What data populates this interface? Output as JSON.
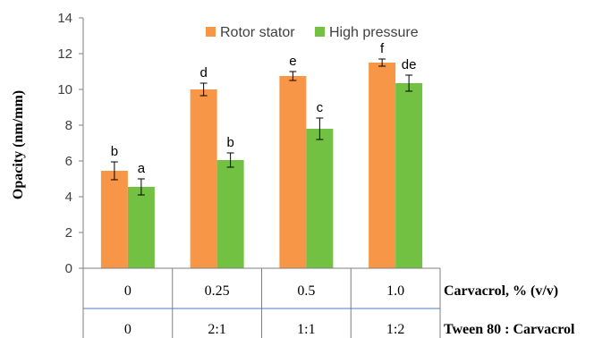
{
  "chart_data": {
    "type": "bar",
    "ylabel": "Opacity (nm/mm)",
    "ylim": [
      0,
      14
    ],
    "yticks": [
      0,
      2,
      4,
      6,
      8,
      10,
      12,
      14
    ],
    "categories": [
      "0",
      "0.25",
      "0.5",
      "1.0"
    ],
    "secondary_categories": [
      "0",
      "2:1",
      "1:1",
      "1:2"
    ],
    "row_labels": [
      "Carvacrol, % (v/v)",
      "Tween 80 : Carvacrol"
    ],
    "legend_position": "top-right",
    "grid": false,
    "series": [
      {
        "name": "Rotor stator",
        "color": "#F79646",
        "values": [
          5.45,
          10.0,
          10.75,
          11.5
        ],
        "errors": [
          0.5,
          0.35,
          0.25,
          0.2
        ],
        "labels": [
          "b",
          "d",
          "e",
          "f"
        ]
      },
      {
        "name": "High pressure",
        "color": "#73C143",
        "values": [
          4.55,
          6.05,
          7.8,
          10.35
        ],
        "errors": [
          0.45,
          0.4,
          0.6,
          0.45
        ],
        "labels": [
          "a",
          "b",
          "c",
          "de"
        ]
      }
    ]
  }
}
